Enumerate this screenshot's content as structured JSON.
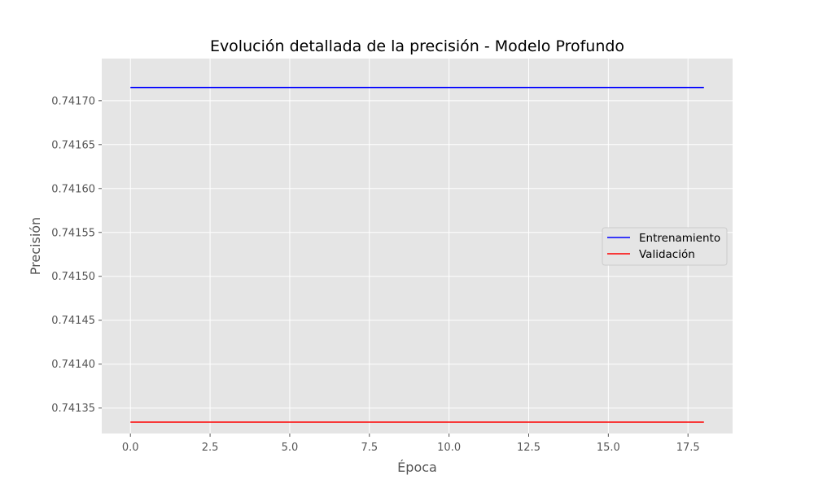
{
  "chart_data": {
    "type": "line",
    "title": "Evolución detallada de la precisión - Modelo Profundo",
    "xlabel": "Época",
    "ylabel": "Precisión",
    "xlim": [
      -0.9,
      18.9
    ],
    "ylim": [
      0.741321,
      0.741748
    ],
    "xticks": [
      0,
      2.5,
      5,
      7.5,
      10,
      12.5,
      15,
      17.5
    ],
    "xtick_labels": [
      "0.0",
      "2.5",
      "5.0",
      "7.5",
      "10.0",
      "12.5",
      "15.0",
      "17.5"
    ],
    "yticks": [
      0.74135,
      0.7414,
      0.74145,
      0.7415,
      0.74155,
      0.7416,
      0.74165,
      0.7417
    ],
    "ytick_labels": [
      "0.74135",
      "0.74140",
      "0.74145",
      "0.74150",
      "0.74155",
      "0.74160",
      "0.74165",
      "0.74170"
    ],
    "grid": true,
    "legend_position": "center-right",
    "background": "#e5e5e5",
    "grid_color": "#ffffff",
    "series": [
      {
        "name": "Entrenamiento",
        "color": "#0000ff",
        "x": [
          0,
          1,
          2,
          3,
          4,
          5,
          6,
          7,
          8,
          9,
          10,
          11,
          12,
          13,
          14,
          15,
          16,
          17,
          18
        ],
        "y": [
          0.741715,
          0.741715,
          0.741715,
          0.741715,
          0.741715,
          0.741715,
          0.741715,
          0.741715,
          0.741715,
          0.741715,
          0.741715,
          0.741715,
          0.741715,
          0.741715,
          0.741715,
          0.741715,
          0.741715,
          0.741715,
          0.741715
        ]
      },
      {
        "name": "Validación",
        "color": "#ff0000",
        "x": [
          0,
          1,
          2,
          3,
          4,
          5,
          6,
          7,
          8,
          9,
          10,
          11,
          12,
          13,
          14,
          15,
          16,
          17,
          18
        ],
        "y": [
          0.741334,
          0.741334,
          0.741334,
          0.741334,
          0.741334,
          0.741334,
          0.741334,
          0.741334,
          0.741334,
          0.741334,
          0.741334,
          0.741334,
          0.741334,
          0.741334,
          0.741334,
          0.741334,
          0.741334,
          0.741334,
          0.741334
        ]
      }
    ]
  }
}
